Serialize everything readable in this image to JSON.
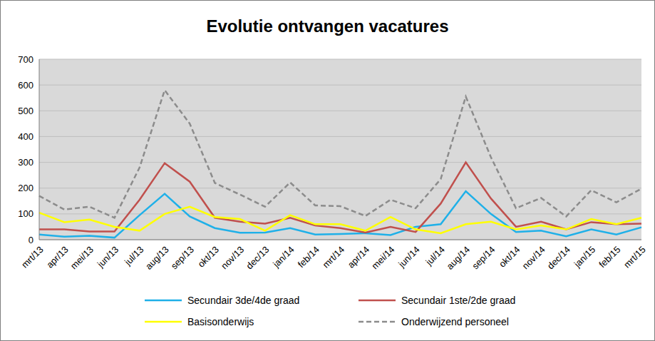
{
  "chart_data": {
    "type": "line",
    "title": "Evolutie ontvangen vacatures",
    "categories": [
      "mrt/13",
      "apr/13",
      "mei/13",
      "jun/13",
      "jul/13",
      "aug/13",
      "sep/13",
      "okt/13",
      "nov/13",
      "dec/13",
      "jan/14",
      "feb/14",
      "mrt/14",
      "apr/14",
      "mei/14",
      "jun/14",
      "jul/14",
      "aug/14",
      "sep/14",
      "okt/14",
      "nov/14",
      "dec/14",
      "jan/15",
      "feb/15",
      "mrt/15"
    ],
    "series": [
      {
        "name": "Secundair 3de/4de graad",
        "color": "#1fb0e8",
        "line_style": "solid",
        "values": [
          20,
          12,
          15,
          8,
          95,
          178,
          90,
          45,
          27,
          28,
          45,
          20,
          22,
          25,
          18,
          50,
          60,
          188,
          100,
          30,
          35,
          13,
          40,
          20,
          48
        ]
      },
      {
        "name": "Secundair 1ste/2de graad",
        "color": "#c0504d",
        "line_style": "solid",
        "values": [
          40,
          40,
          32,
          32,
          155,
          297,
          225,
          85,
          70,
          62,
          85,
          55,
          45,
          28,
          50,
          30,
          140,
          300,
          160,
          50,
          70,
          40,
          68,
          60,
          62
        ]
      },
      {
        "name": "Basisonderwijs",
        "color": "#ffff00",
        "line_style": "solid",
        "values": [
          105,
          68,
          78,
          50,
          35,
          100,
          128,
          88,
          80,
          35,
          95,
          60,
          60,
          35,
          88,
          40,
          25,
          60,
          70,
          40,
          55,
          40,
          80,
          60,
          85
        ]
      },
      {
        "name": "Onderwijzend personeel",
        "color": "#8c8c8c",
        "line_style": "dashed",
        "values": [
          170,
          117,
          128,
          85,
          280,
          580,
          450,
          220,
          175,
          128,
          222,
          133,
          130,
          92,
          155,
          122,
          235,
          555,
          320,
          122,
          162,
          90,
          192,
          145,
          198
        ]
      }
    ],
    "ylim": [
      0,
      700
    ],
    "yticks": [
      0,
      100,
      200,
      300,
      400,
      500,
      600,
      700
    ],
    "grid": true
  }
}
